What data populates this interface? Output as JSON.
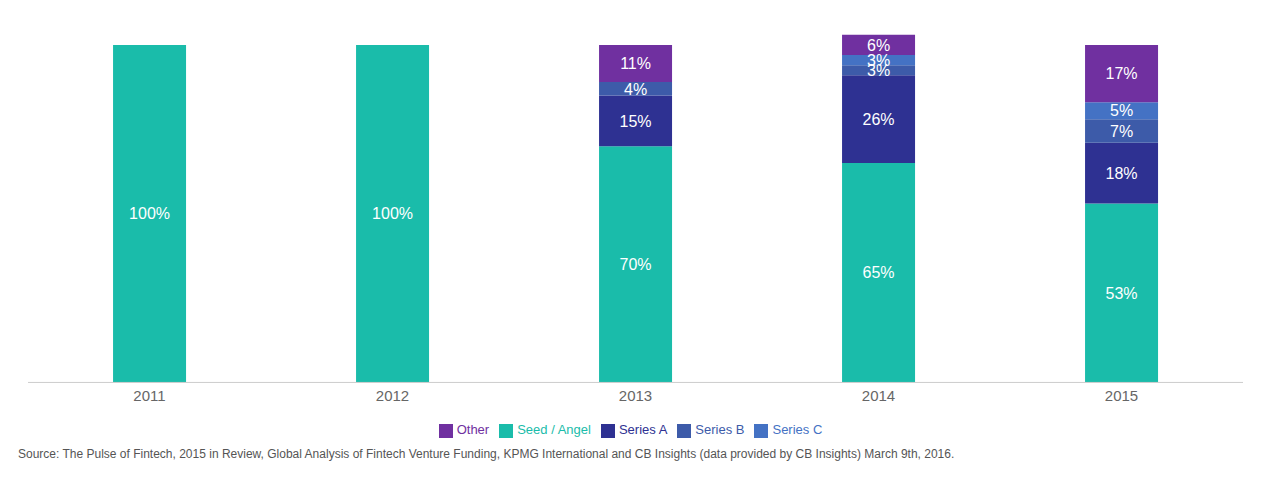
{
  "chart_data": {
    "type": "bar",
    "stacked": true,
    "data_labels": true,
    "tick_labels": "x",
    "grid": false,
    "legend": "bottom",
    "categories": [
      "2011",
      "2012",
      "2013",
      "2014",
      "2015"
    ],
    "ylim": [
      0,
      108
    ],
    "series": [
      {
        "name": "Seed / Angel",
        "color": "#1abcaa",
        "values": [
          100,
          100,
          70,
          65,
          53
        ],
        "value_labels": [
          "100%",
          "100%",
          "70%",
          "65%",
          "53%"
        ]
      },
      {
        "name": "Series A",
        "color": "#2e3192",
        "values": [
          0,
          0,
          15,
          26,
          18
        ],
        "value_labels": [
          null,
          null,
          "15%",
          "26%",
          "18%"
        ]
      },
      {
        "name": "Series B",
        "color": "#3d5ba9",
        "values": [
          0,
          0,
          4,
          3,
          7
        ],
        "value_labels": [
          null,
          null,
          "4%",
          "3%",
          "7%"
        ]
      },
      {
        "name": "Series C",
        "color": "#4472c4",
        "values": [
          0,
          0,
          0,
          3,
          5
        ],
        "value_labels": [
          null,
          null,
          null,
          "3%",
          "5%"
        ]
      },
      {
        "name": "Other",
        "color": "#7030a0",
        "values": [
          0,
          0,
          11,
          6,
          17
        ],
        "value_labels": [
          null,
          null,
          "11%",
          "6%",
          "17%"
        ]
      }
    ],
    "annotations": [
      "Source: The Pulse of Fintech, 2015 in Review, Global Analysis of Fintech Venture Funding, KPMG International and CB Insights (data provided by CB Insights) March 9th, 2016."
    ]
  }
}
